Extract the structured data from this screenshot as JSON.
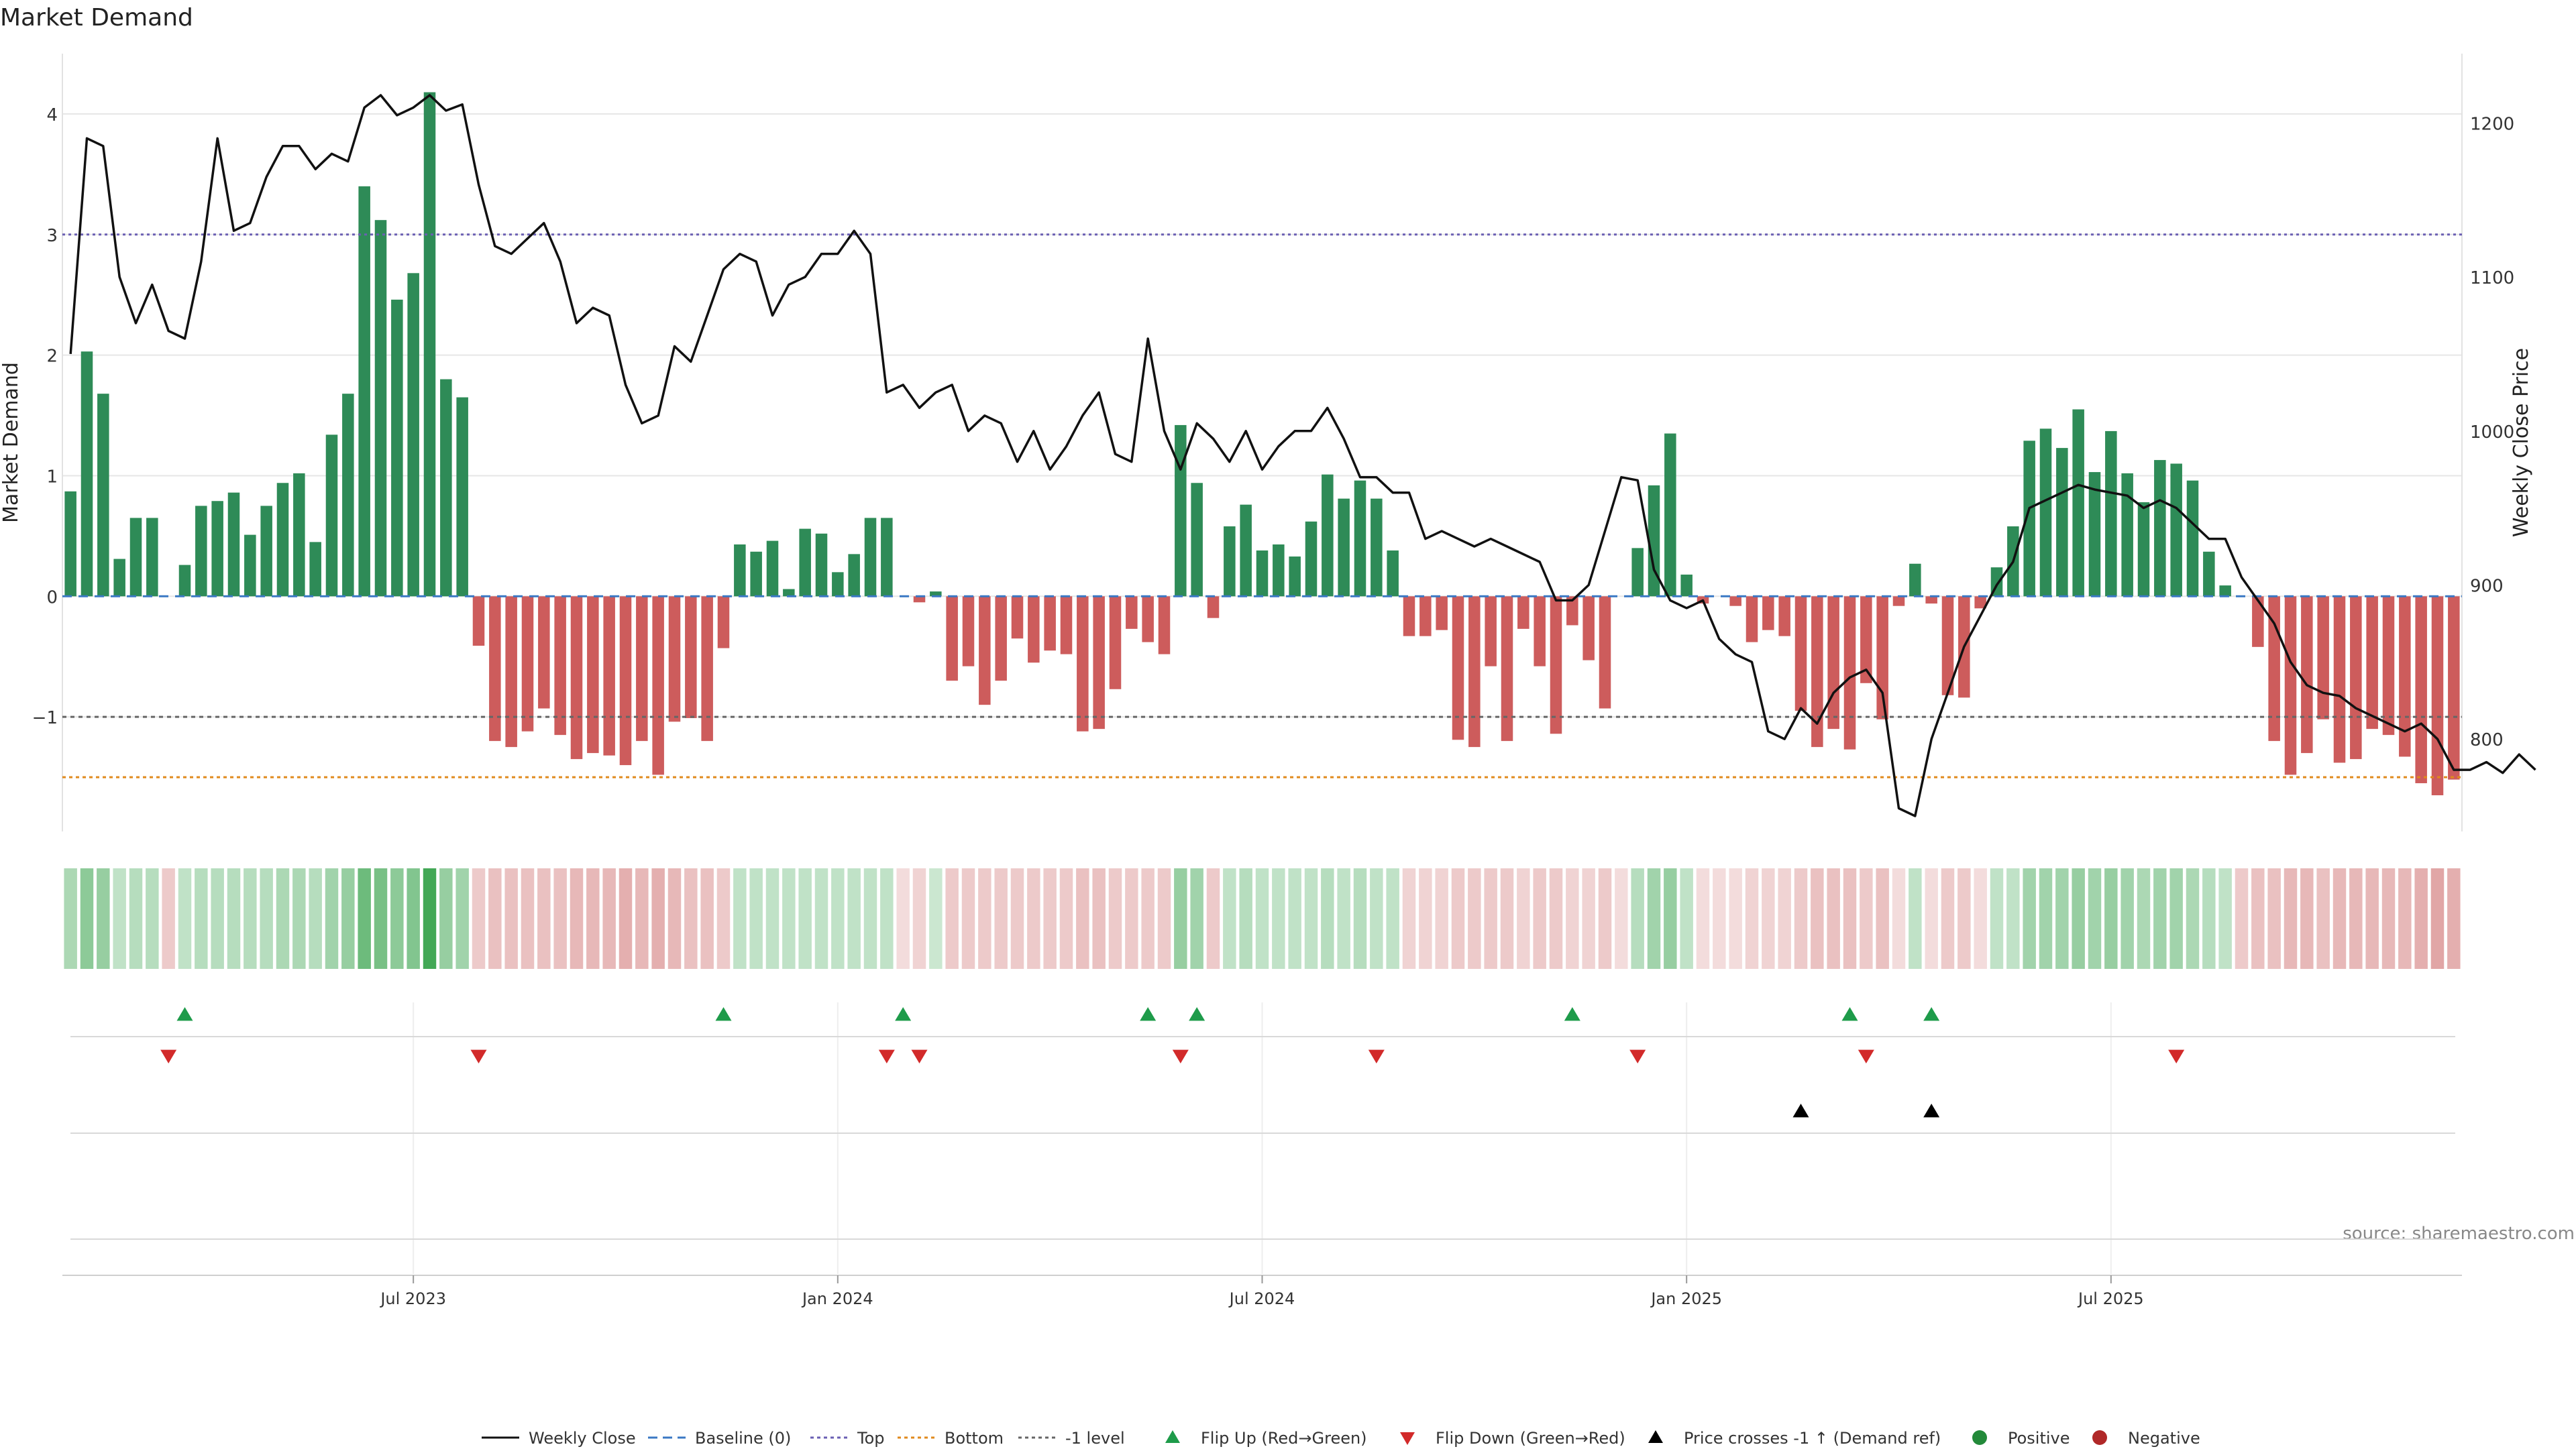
{
  "chart_data": {
    "type": "bar",
    "title": "Market Demand",
    "ylabel_left": "Market Demand",
    "ylabel_right": "Weekly Close Price",
    "source": "source: sharemaestro.com",
    "ylim_left": [
      -1.95,
      4.5
    ],
    "ylim_right": [
      740,
      1245
    ],
    "yticks_left": [
      {
        "v": 4,
        "label": "4"
      },
      {
        "v": 3,
        "label": "3"
      },
      {
        "v": 2,
        "label": "2"
      },
      {
        "v": 1,
        "label": "1"
      },
      {
        "v": 0,
        "label": "0"
      },
      {
        "v": -1,
        "label": "−1"
      }
    ],
    "yticks_right": [
      {
        "v": 1200,
        "label": "1200"
      },
      {
        "v": 1100,
        "label": "1100"
      },
      {
        "v": 1000,
        "label": "1000"
      },
      {
        "v": 900,
        "label": "900"
      },
      {
        "v": 800,
        "label": "800"
      }
    ],
    "xticks": [
      {
        "i": 21.5,
        "label": "Jul 2023"
      },
      {
        "i": 47.5,
        "label": "Jan 2024"
      },
      {
        "i": 73.5,
        "label": "Jul 2024"
      },
      {
        "i": 99.5,
        "label": "Jan 2025"
      },
      {
        "i": 125.5,
        "label": "Jul 2025"
      }
    ],
    "reference_lines": {
      "top": 3.0,
      "bottom": -1.5,
      "minus_one": -1.0,
      "baseline": 0
    },
    "demand": [
      0.87,
      2.03,
      1.68,
      0.31,
      0.65,
      0.65,
      0,
      0.26,
      0.75,
      0.79,
      0.86,
      0.51,
      0.75,
      0.94,
      1.02,
      0.45,
      1.34,
      1.68,
      3.4,
      3.12,
      2.46,
      2.68,
      4.18,
      1.8,
      1.65,
      -0.41,
      -1.2,
      -1.25,
      -1.12,
      -0.93,
      -1.15,
      -1.35,
      -1.3,
      -1.32,
      -1.4,
      -1.2,
      -1.48,
      -1.04,
      -1.01,
      -1.2,
      -0.43,
      0.43,
      0.37,
      0.46,
      0.06,
      0.56,
      0.52,
      0.2,
      0.35,
      0.65,
      0.65,
      0,
      -0.05,
      0.04,
      -0.7,
      -0.58,
      -0.9,
      -0.7,
      -0.35,
      -0.55,
      -0.45,
      -0.48,
      -1.12,
      -1.1,
      -0.77,
      -0.27,
      -0.38,
      -0.48,
      1.42,
      0.94,
      -0.18,
      0.58,
      0.76,
      0.38,
      0.43,
      0.33,
      0.62,
      1.01,
      0.81,
      0.96,
      0.81,
      0.38,
      -0.33,
      -0.33,
      -0.28,
      -1.19,
      -1.25,
      -0.58,
      -1.2,
      -0.27,
      -0.58,
      -1.14,
      -0.24,
      -0.53,
      -0.93,
      0,
      0.4,
      0.92,
      1.35,
      0.18,
      -0.06,
      0,
      -0.08,
      -0.38,
      -0.28,
      -0.33,
      -0.95,
      -1.25,
      -1.1,
      -1.27,
      -0.72,
      -1.02,
      -0.08,
      0.27,
      -0.06,
      -0.82,
      -0.84,
      -0.1,
      0.24,
      0.58,
      1.29,
      1.39,
      1.23,
      1.55,
      1.03,
      1.37,
      1.02,
      0.78,
      1.13,
      1.1,
      0.96,
      0.37,
      0.09,
      0,
      -0.42,
      -1.2,
      -1.48,
      -1.3,
      -1.02,
      -1.38,
      -1.35,
      -1.1,
      -1.15,
      -1.33,
      -1.55,
      -1.65,
      -1.52
    ],
    "price": [
      1050,
      1190,
      1185,
      1100,
      1070,
      1095,
      1065,
      1060,
      1110,
      1190,
      1130,
      1135,
      1165,
      1185,
      1185,
      1170,
      1180,
      1175,
      1210,
      1218,
      1205,
      1210,
      1218,
      1208,
      1212,
      1160,
      1120,
      1115,
      1125,
      1135,
      1110,
      1070,
      1080,
      1075,
      1030,
      1005,
      1010,
      1055,
      1045,
      1075,
      1105,
      1115,
      1110,
      1075,
      1095,
      1100,
      1115,
      1115,
      1130,
      1115,
      1025,
      1030,
      1015,
      1025,
      1030,
      1000,
      1010,
      1005,
      980,
      1000,
      975,
      990,
      1010,
      1025,
      985,
      980,
      1060,
      1000,
      975,
      1005,
      995,
      980,
      1000,
      975,
      990,
      1000,
      1000,
      1015,
      995,
      970,
      970,
      960,
      960,
      930,
      935,
      930,
      925,
      930,
      925,
      920,
      915,
      890,
      890,
      900,
      935,
      970,
      968,
      910,
      890,
      885,
      890,
      865,
      855,
      850,
      805,
      800,
      820,
      810,
      830,
      840,
      845,
      830,
      755,
      750,
      800,
      830,
      860,
      880,
      900,
      915,
      950,
      955,
      960,
      965,
      962,
      960,
      958,
      950,
      955,
      950,
      940,
      930,
      930,
      905,
      890,
      875,
      850,
      835,
      830,
      828,
      820,
      815,
      810,
      805,
      810,
      800,
      780,
      780,
      785,
      778,
      790,
      780
    ],
    "heat": [
      0.4,
      0.55,
      0.5,
      0.3,
      0.35,
      0.35,
      0.3,
      0.3,
      0.35,
      0.35,
      0.35,
      0.35,
      0.35,
      0.4,
      0.4,
      0.35,
      0.45,
      0.5,
      0.7,
      0.65,
      0.55,
      0.6,
      0.9,
      0.5,
      0.45,
      0.3,
      0.35,
      0.35,
      0.35,
      0.35,
      0.35,
      0.4,
      0.4,
      0.4,
      0.45,
      0.4,
      0.45,
      0.4,
      0.35,
      0.35,
      0.3,
      0.3,
      0.3,
      0.3,
      0.3,
      0.3,
      0.3,
      0.3,
      0.3,
      0.3,
      0.3,
      0.2,
      0.25,
      0.25,
      0.3,
      0.3,
      0.3,
      0.3,
      0.3,
      0.3,
      0.3,
      0.3,
      0.35,
      0.35,
      0.3,
      0.3,
      0.3,
      0.3,
      0.5,
      0.45,
      0.3,
      0.3,
      0.35,
      0.3,
      0.3,
      0.3,
      0.3,
      0.35,
      0.3,
      0.35,
      0.3,
      0.3,
      0.25,
      0.25,
      0.25,
      0.3,
      0.3,
      0.3,
      0.3,
      0.25,
      0.3,
      0.3,
      0.25,
      0.25,
      0.3,
      0.2,
      0.35,
      0.45,
      0.5,
      0.3,
      0.2,
      0.2,
      0.2,
      0.25,
      0.25,
      0.25,
      0.3,
      0.35,
      0.35,
      0.35,
      0.3,
      0.35,
      0.2,
      0.3,
      0.2,
      0.3,
      0.3,
      0.2,
      0.3,
      0.3,
      0.45,
      0.45,
      0.45,
      0.5,
      0.45,
      0.5,
      0.45,
      0.4,
      0.45,
      0.45,
      0.4,
      0.35,
      0.3,
      0.3,
      0.35,
      0.35,
      0.4,
      0.4,
      0.35,
      0.4,
      0.4,
      0.4,
      0.4,
      0.4,
      0.45,
      0.5,
      0.45
    ],
    "flip_up": [
      7,
      40,
      51,
      66,
      69,
      92,
      109,
      114
    ],
    "flip_down": [
      6,
      25,
      50,
      52,
      68,
      80,
      96,
      110,
      129
    ],
    "price_cross": [
      106,
      114
    ],
    "legend": [
      {
        "key": "weekly_close",
        "label": "Weekly Close",
        "icon": "solid-line",
        "color": "#111111"
      },
      {
        "key": "baseline",
        "label": "Baseline (0)",
        "icon": "dashed-line",
        "color": "#3a78c4"
      },
      {
        "key": "top",
        "label": "Top",
        "icon": "dotted-line",
        "color": "#6a5fb3"
      },
      {
        "key": "bottom",
        "label": "Bottom",
        "icon": "dotted-line",
        "color": "#e08a1e"
      },
      {
        "key": "minus_one",
        "label": "-1 level",
        "icon": "dotted-line",
        "color": "#666666"
      },
      {
        "key": "flip_up",
        "label": "Flip Up (Red→Green)",
        "icon": "triangle-up",
        "color": "#1e9b4a"
      },
      {
        "key": "flip_down",
        "label": "Flip Down (Green→Red)",
        "icon": "triangle-down",
        "color": "#d22a2a"
      },
      {
        "key": "price_cross",
        "label": "Price crosses -1 ↑ (Demand ref)",
        "icon": "triangle-up",
        "color": "#000000"
      },
      {
        "key": "positive",
        "label": "Positive",
        "icon": "circle",
        "color": "#238a3a"
      },
      {
        "key": "negative",
        "label": "Negative",
        "icon": "circle",
        "color": "#b02828"
      }
    ],
    "colors": {
      "positive_bar": "#2e8b57",
      "negative_bar": "#cd5c5c",
      "heat_green": "#2f9e44",
      "heat_red": "#c44e4e",
      "price_line": "#111111",
      "grid": "#e6e6e6"
    }
  }
}
